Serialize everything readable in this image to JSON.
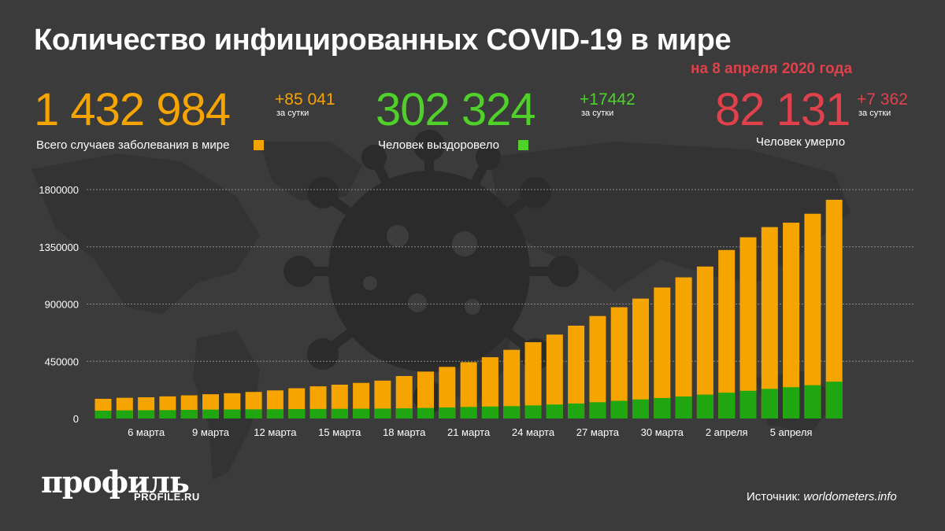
{
  "header": {
    "title": "Количество инфицированных COVID-19 в мире",
    "subtitle": "на 8 апреля 2020 года"
  },
  "stats": {
    "cases": {
      "value": "1 432 984",
      "delta": "+85 041",
      "per": "за сутки",
      "label": "Всего случаев заболевания в мире",
      "color": "#f5a400"
    },
    "recovered": {
      "value": "302 324",
      "delta": "+17442",
      "per": "за сутки",
      "label": "Человек выздоровело",
      "color": "#4fd12a"
    },
    "deaths": {
      "value": "82 131",
      "delta": "+7 362",
      "per": "за сутки",
      "label": "Человек умерло",
      "color": "#e0414b"
    }
  },
  "footer": {
    "logo": "профиль",
    "logo_url": "PROFILE.RU",
    "source_label": "Источник:",
    "source_name": "worldometers.info"
  },
  "colors": {
    "background": "#3b3b3b",
    "cases_bar": "#f5a400",
    "recovered_bar": "#1fa610",
    "grid": "#8a8a8a",
    "virus_icon": "#2b2b2b"
  },
  "icons": {
    "background": "world-map-and-coronavirus-icon"
  },
  "chart_data": {
    "type": "bar",
    "stacked": "overlay",
    "categories": [
      "4 марта",
      "5 марта",
      "6 марта",
      "7 марта",
      "8 марта",
      "9 марта",
      "10 марта",
      "11 марта",
      "12 марта",
      "13 марта",
      "14 марта",
      "15 марта",
      "16 марта",
      "17 марта",
      "18 марта",
      "19 марта",
      "20 марта",
      "21 марта",
      "22 марта",
      "23 марта",
      "24 марта",
      "25 марта",
      "26 марта",
      "27 марта",
      "28 марта",
      "29 марта",
      "30 марта",
      "31 марта",
      "1 апреля",
      "2 апреля",
      "3 апреля",
      "4 апреля",
      "5 апреля",
      "6 апреля",
      "7 апреля"
    ],
    "tick_labels": [
      "6 марта",
      "9 марта",
      "12 марта",
      "15 марта",
      "18 марта",
      "21 марта",
      "24 марта",
      "27 марта",
      "30 марта",
      "2 апреля",
      "5 апреля"
    ],
    "series": [
      {
        "values": [
          155000,
          163000,
          167000,
          174000,
          182000,
          191000,
          199000,
          209000,
          221000,
          238000,
          253000,
          266000,
          280000,
          298000,
          334000,
          369000,
          406000,
          443000,
          482000,
          540000,
          600000,
          660000,
          730000,
          806000,
          875000,
          943000,
          1030000,
          1110000,
          1195000,
          1325000,
          1425000,
          1505000,
          1540000,
          1610000,
          1720000
        ]
      },
      {
        "values": [
          62000,
          64000,
          65000,
          66000,
          68000,
          70000,
          71000,
          72000,
          73000,
          74000,
          75000,
          76000,
          77000,
          78000,
          80000,
          83000,
          87000,
          91000,
          94000,
          97000,
          103000,
          110000,
          118000,
          128000,
          139000,
          150000,
          161000,
          173000,
          188000,
          203000,
          218000,
          233000,
          246000,
          262000,
          290000
        ]
      }
    ],
    "y_ticks": [
      0,
      450000,
      900000,
      1350000,
      1800000
    ],
    "ylim": [
      0,
      1800000
    ],
    "grid": true
  }
}
